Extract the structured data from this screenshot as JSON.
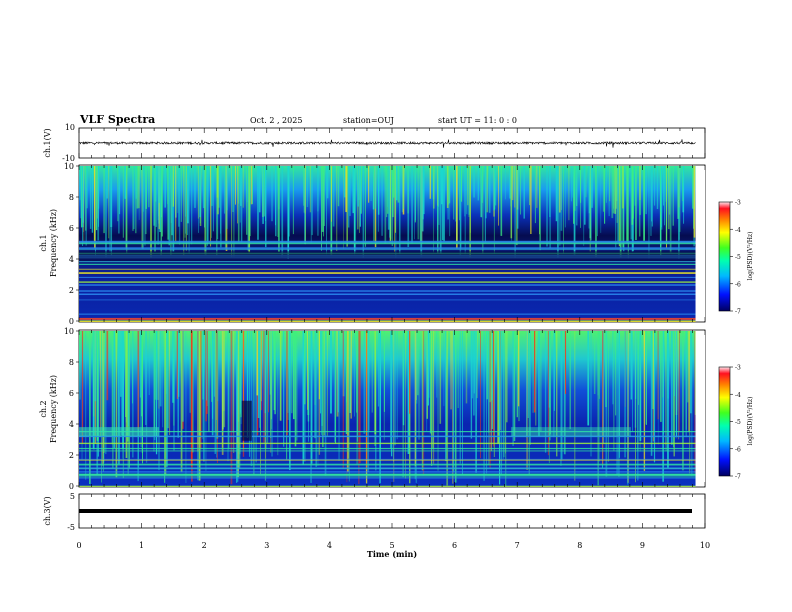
{
  "header": {
    "title": "VLF Spectra",
    "date": "Oct. 2 , 2025",
    "station": "station=OUJ",
    "start": "start UT = 11: 0 : 0"
  },
  "chart_data": [
    {
      "type": "line",
      "name": "waveform-ch1",
      "ylabel": "ch.1(V)",
      "ytick_labels": [
        "10",
        "-10"
      ],
      "ylim": [
        -10,
        10
      ],
      "xlim": [
        0,
        10
      ],
      "baseline_value": 0,
      "noise_amplitude": 1.5
    },
    {
      "type": "heatmap",
      "name": "spectrogram-ch1",
      "ylabel": "ch.1 Frequency (kHz)",
      "ytick_labels": [
        "0",
        "2",
        "4",
        "6",
        "8",
        "10"
      ],
      "ylim": [
        0,
        10
      ],
      "xlim": [
        0,
        9.85
      ],
      "colorbar": {
        "label": "log(PSD)(V²/Hz)",
        "tick_labels": [
          "-3",
          "-4",
          "-5",
          "-6",
          "-7"
        ],
        "range": [
          -7,
          -3
        ]
      }
    },
    {
      "type": "heatmap",
      "name": "spectrogram-ch2",
      "ylabel": "ch.2 Frequency (kHz)",
      "ytick_labels": [
        "0",
        "2",
        "4",
        "6",
        "8",
        "10"
      ],
      "ylim": [
        0,
        10
      ],
      "xlim": [
        0,
        9.85
      ],
      "colorbar": {
        "label": "log(PSD)(V²/Hz)",
        "tick_labels": [
          "-3",
          "-4",
          "-5",
          "-6",
          "-7"
        ],
        "range": [
          -7,
          -3
        ]
      }
    },
    {
      "type": "line",
      "name": "waveform-ch3",
      "ylabel": "ch.3(V)",
      "ytick_labels": [
        "5",
        "-5"
      ],
      "ylim": [
        -5,
        5
      ],
      "xlim": [
        0,
        10
      ],
      "baseline_value": 0
    }
  ],
  "xaxis": {
    "label": "Time (min)",
    "tick_labels": [
      "0",
      "1",
      "2",
      "3",
      "4",
      "5",
      "6",
      "7",
      "8",
      "9",
      "10"
    ]
  },
  "colors": {
    "waveform": "#000000",
    "spectro_bg": "#0a1aa8",
    "spectro_dark": "#06105c"
  }
}
